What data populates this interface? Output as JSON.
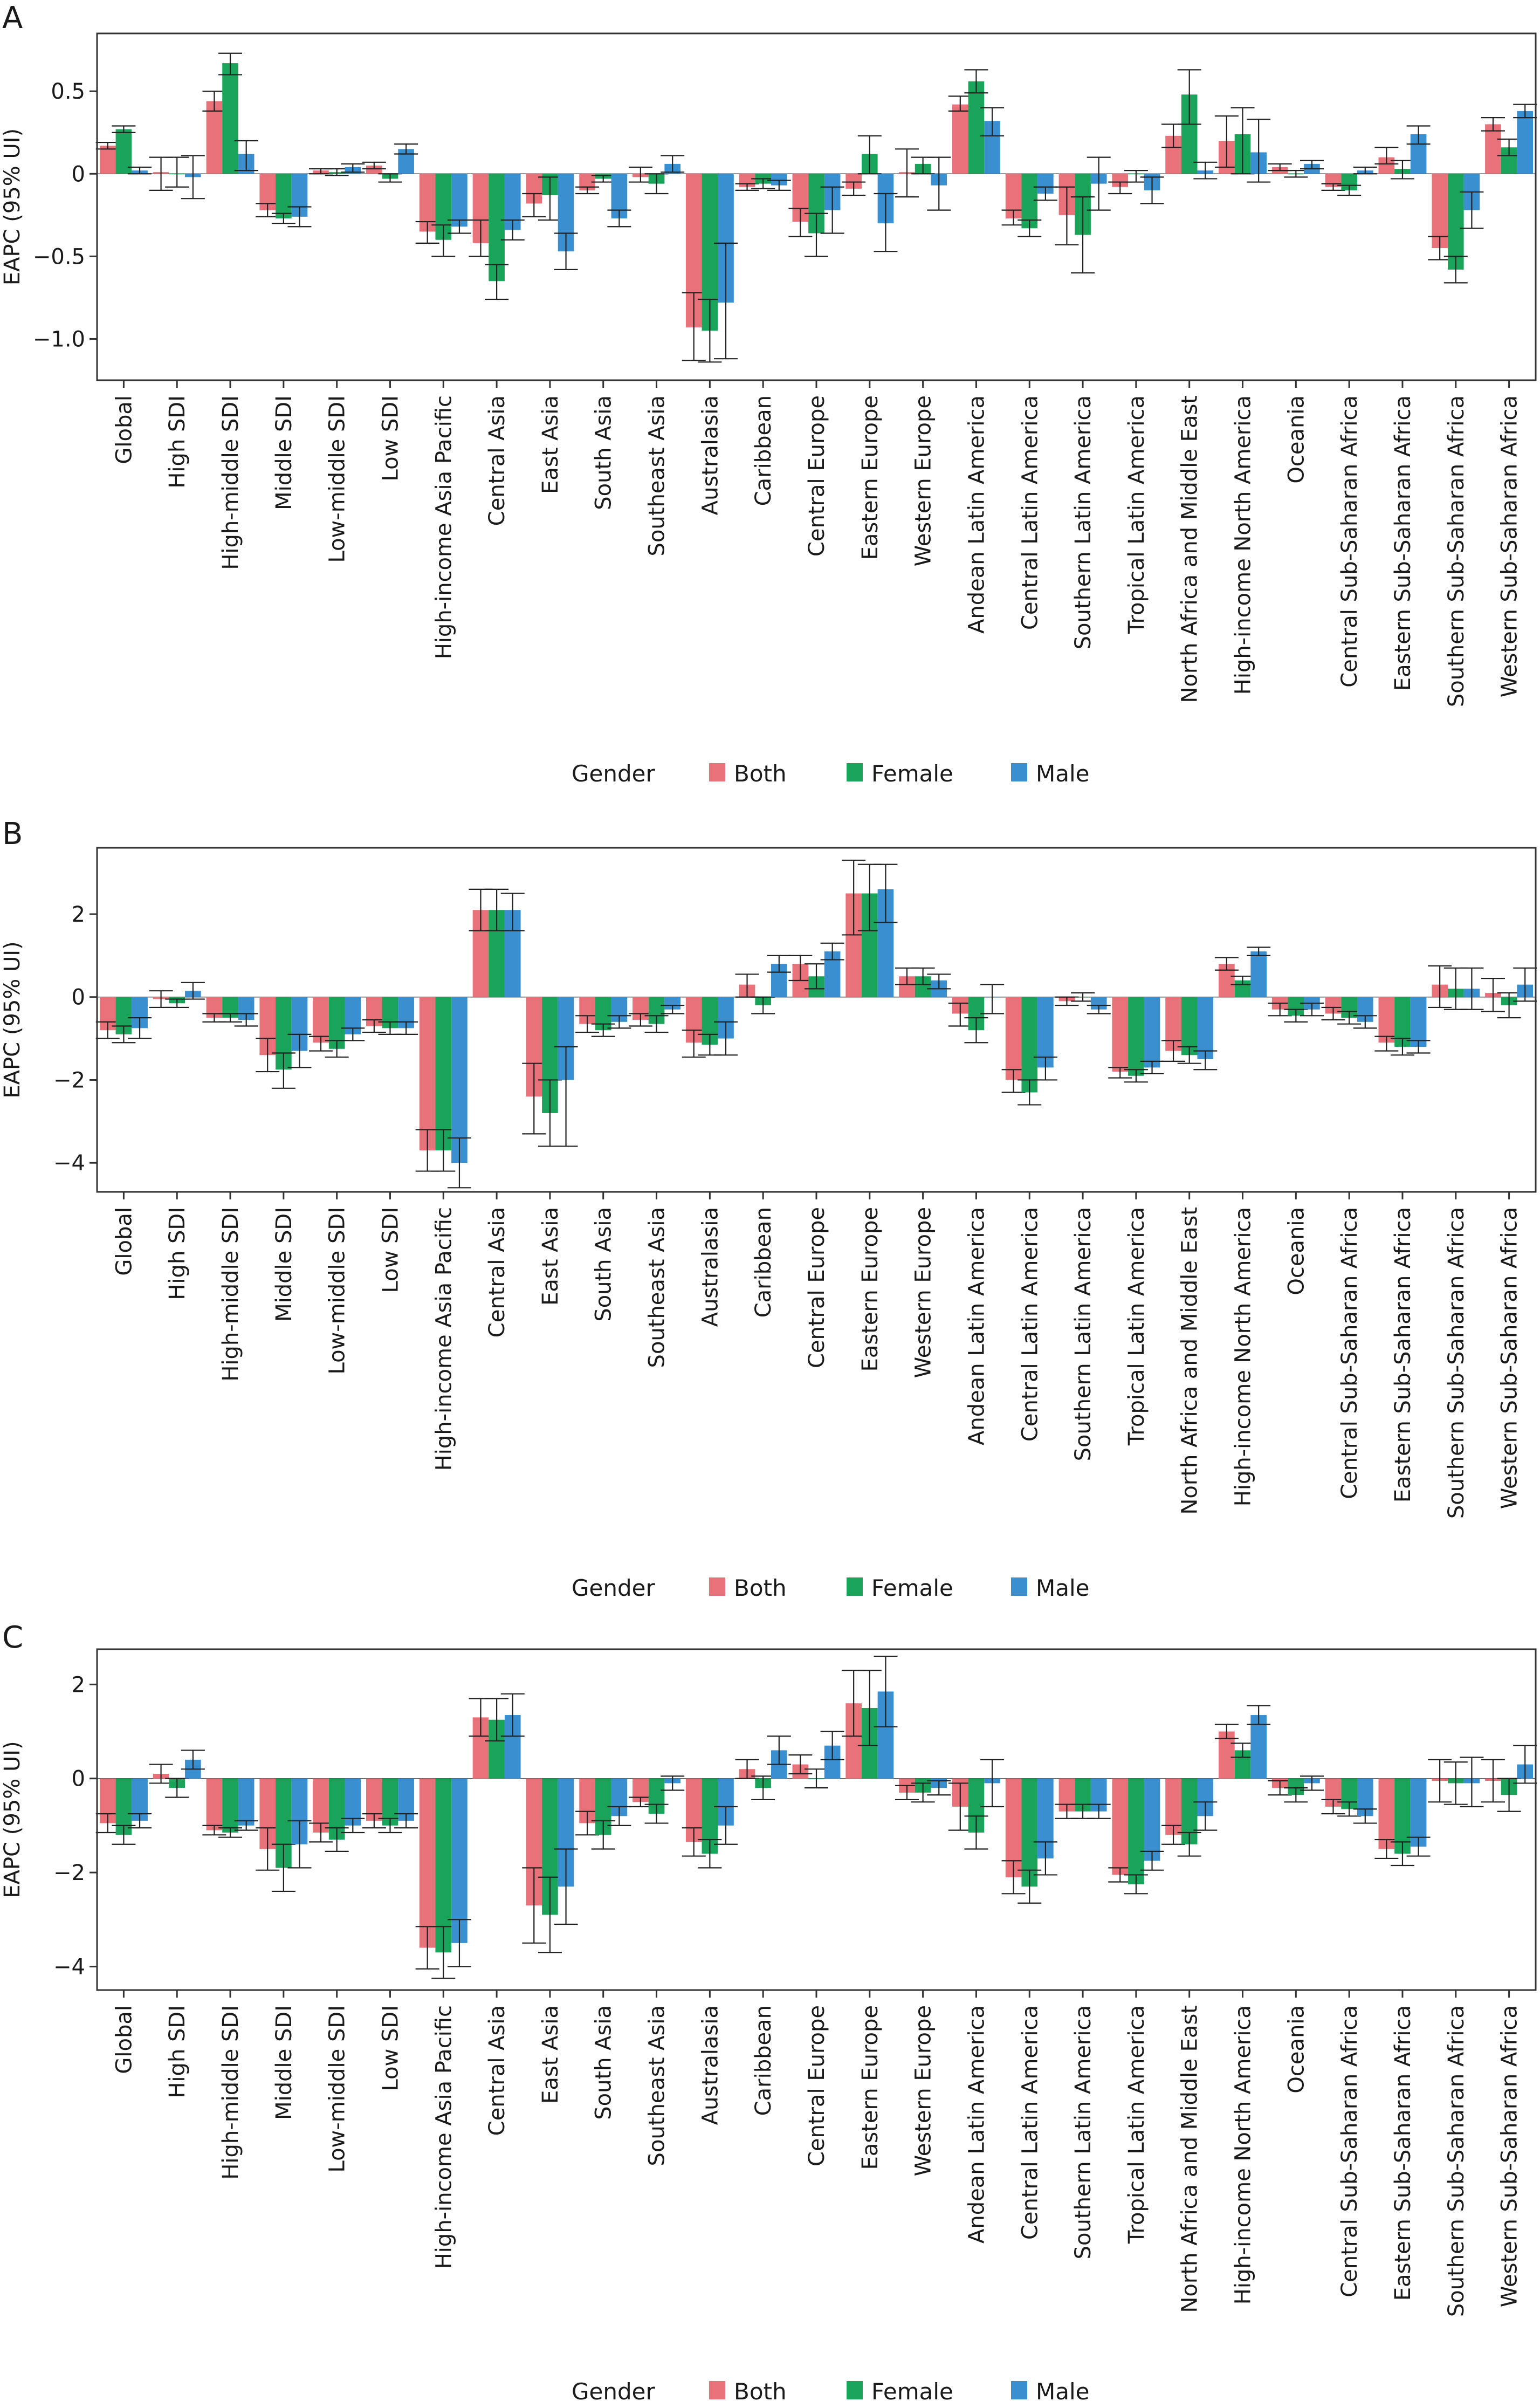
{
  "colors": {
    "Both": "#e8717a",
    "Female": "#1aa45a",
    "Male": "#3a8fd1",
    "axis": "#333333"
  },
  "legend": {
    "title": "Gender"
  },
  "chart_data": [
    {
      "panel_label": "A",
      "type": "bar",
      "ylabel": "EAPC (95% UI)",
      "ylim": [
        -1.25,
        0.85
      ],
      "yticks": [
        0.5,
        0,
        -0.5,
        -1.0
      ],
      "ytick_labels": [
        "0.5",
        "0",
        "−0.5",
        "−1.0"
      ],
      "grid": false,
      "legend_position": "bottom",
      "categories": [
        "Global",
        "High SDI",
        "High-middle SDI",
        "Middle SDI",
        "Low-middle SDI",
        "Low SDI",
        "High-income Asia Pacific",
        "Central Asia",
        "East Asia",
        "South Asia",
        "Southeast Asia",
        "Australasia",
        "Caribbean",
        "Central Europe",
        "Eastern Europe",
        "Western Europe",
        "Andean Latin America",
        "Central Latin America",
        "Southern Latin America",
        "Tropical Latin America",
        "North Africa and Middle East",
        "High-income North America",
        "Oceania",
        "Central Sub-Saharan Africa",
        "Eastern Sub-Saharan Africa",
        "Southern Sub-Saharan Africa",
        "Western Sub-Saharan Africa"
      ],
      "series": [
        {
          "name": "Both",
          "values": [
            0.17,
            0.01,
            0.44,
            -0.22,
            0.02,
            0.05,
            -0.35,
            -0.42,
            -0.18,
            -0.1,
            -0.02,
            -0.93,
            -0.08,
            -0.29,
            -0.09,
            0.01,
            0.42,
            -0.27,
            -0.25,
            -0.08,
            0.23,
            0.2,
            0.04,
            -0.08,
            0.1,
            -0.45,
            0.3
          ],
          "lower": [
            0.15,
            -0.1,
            0.38,
            -0.26,
            0.0,
            0.03,
            -0.42,
            -0.5,
            -0.26,
            -0.12,
            -0.05,
            -1.13,
            -0.1,
            -0.38,
            -0.13,
            -0.14,
            0.38,
            -0.31,
            -0.43,
            -0.12,
            0.16,
            0.04,
            0.02,
            -0.1,
            0.06,
            -0.52,
            0.26
          ],
          "upper": [
            0.19,
            0.1,
            0.5,
            -0.18,
            0.03,
            0.07,
            -0.29,
            -0.28,
            -0.12,
            -0.08,
            0.04,
            -0.72,
            -0.06,
            -0.21,
            -0.05,
            0.15,
            0.47,
            -0.22,
            -0.08,
            -0.05,
            0.3,
            0.35,
            0.06,
            -0.06,
            0.16,
            -0.38,
            0.34
          ]
        },
        {
          "name": "Female",
          "values": [
            0.27,
            0.0,
            0.67,
            -0.27,
            0.01,
            -0.03,
            -0.4,
            -0.65,
            -0.13,
            -0.03,
            -0.06,
            -0.95,
            -0.06,
            -0.36,
            0.12,
            0.06,
            0.56,
            -0.33,
            -0.37,
            0.0,
            0.48,
            0.24,
            0.0,
            -0.1,
            0.03,
            -0.58,
            0.16
          ],
          "lower": [
            0.25,
            -0.08,
            0.6,
            -0.3,
            -0.01,
            -0.05,
            -0.5,
            -0.76,
            -0.28,
            -0.05,
            -0.12,
            -1.14,
            -0.09,
            -0.5,
            0.0,
            0.0,
            0.49,
            -0.38,
            -0.6,
            -0.05,
            0.3,
            0.0,
            -0.02,
            -0.13,
            -0.03,
            -0.66,
            0.11
          ],
          "upper": [
            0.29,
            0.1,
            0.73,
            -0.24,
            0.03,
            0.0,
            -0.31,
            -0.55,
            -0.02,
            -0.01,
            0.0,
            -0.76,
            -0.03,
            -0.24,
            0.23,
            0.1,
            0.63,
            -0.28,
            -0.14,
            0.02,
            0.63,
            0.4,
            0.02,
            -0.07,
            0.08,
            -0.5,
            0.21
          ]
        },
        {
          "name": "Male",
          "values": [
            0.02,
            -0.02,
            0.12,
            -0.26,
            0.04,
            0.15,
            -0.32,
            -0.34,
            -0.47,
            -0.27,
            0.06,
            -0.78,
            -0.07,
            -0.22,
            -0.3,
            -0.07,
            0.32,
            -0.12,
            -0.06,
            -0.1,
            0.02,
            0.13,
            0.06,
            0.02,
            0.24,
            -0.22,
            0.38
          ],
          "lower": [
            0.0,
            -0.15,
            0.02,
            -0.32,
            0.01,
            0.12,
            -0.36,
            -0.4,
            -0.58,
            -0.32,
            0.01,
            -1.12,
            -0.1,
            -0.36,
            -0.47,
            -0.22,
            0.23,
            -0.16,
            -0.22,
            -0.18,
            -0.03,
            -0.05,
            0.03,
            0.0,
            0.18,
            -0.33,
            0.34
          ],
          "upper": [
            0.04,
            0.11,
            0.2,
            -0.2,
            0.06,
            0.18,
            -0.28,
            -0.28,
            -0.36,
            -0.22,
            0.11,
            -0.42,
            -0.04,
            -0.08,
            -0.12,
            0.1,
            0.4,
            -0.08,
            0.1,
            -0.02,
            0.07,
            0.33,
            0.08,
            0.04,
            0.29,
            -0.11,
            0.42
          ]
        }
      ]
    },
    {
      "panel_label": "B",
      "type": "bar",
      "ylabel": "EAPC (95% UI)",
      "ylim": [
        -4.7,
        3.6
      ],
      "yticks": [
        2,
        0,
        -2,
        -4
      ],
      "ytick_labels": [
        "2",
        "0",
        "−2",
        "−4"
      ],
      "grid": false,
      "legend_position": "bottom",
      "categories": [
        "Global",
        "High SDI",
        "High-middle SDI",
        "Middle SDI",
        "Low-middle SDI",
        "Low SDI",
        "High-income Asia Pacific",
        "Central Asia",
        "East Asia",
        "South Asia",
        "Southeast Asia",
        "Australasia",
        "Caribbean",
        "Central Europe",
        "Eastern Europe",
        "Western Europe",
        "Andean Latin America",
        "Central Latin America",
        "Southern Latin America",
        "Tropical Latin America",
        "North Africa and Middle East",
        "High-income North America",
        "Oceania",
        "Central Sub-Saharan Africa",
        "Eastern Sub-Saharan Africa",
        "Southern Sub-Saharan Africa",
        "Western Sub-Saharan Africa"
      ],
      "series": [
        {
          "name": "Both",
          "values": [
            -0.8,
            -0.05,
            -0.5,
            -1.4,
            -1.1,
            -0.7,
            -3.7,
            2.1,
            -2.4,
            -0.65,
            -0.55,
            -1.1,
            0.3,
            0.8,
            2.5,
            0.5,
            -0.4,
            -2.0,
            -0.1,
            -1.8,
            -1.3,
            0.8,
            -0.3,
            -0.4,
            -1.1,
            0.3,
            0.1
          ],
          "lower": [
            -1.0,
            -0.25,
            -0.6,
            -1.8,
            -1.3,
            -0.85,
            -4.2,
            1.6,
            -3.3,
            -0.85,
            -0.7,
            -1.45,
            0.0,
            0.4,
            1.5,
            0.3,
            -0.7,
            -2.3,
            -0.2,
            -1.95,
            -1.55,
            0.65,
            -0.45,
            -0.55,
            -1.3,
            -0.25,
            -0.35
          ],
          "upper": [
            -0.6,
            0.15,
            -0.4,
            -1.0,
            -0.95,
            -0.55,
            -3.2,
            2.6,
            -1.6,
            -0.45,
            -0.4,
            -0.8,
            0.55,
            1.0,
            3.3,
            0.7,
            -0.15,
            -1.75,
            0.0,
            -1.7,
            -1.05,
            0.95,
            -0.15,
            -0.25,
            -0.95,
            0.75,
            0.45
          ]
        },
        {
          "name": "Female",
          "values": [
            -0.9,
            -0.15,
            -0.5,
            -1.75,
            -1.25,
            -0.75,
            -3.7,
            2.1,
            -2.8,
            -0.8,
            -0.65,
            -1.15,
            -0.2,
            0.5,
            2.5,
            0.5,
            -0.8,
            -2.3,
            0.0,
            -1.9,
            -1.4,
            0.4,
            -0.45,
            -0.5,
            -1.2,
            0.2,
            -0.2
          ],
          "lower": [
            -1.1,
            -0.25,
            -0.6,
            -2.2,
            -1.45,
            -0.9,
            -4.2,
            1.6,
            -3.6,
            -0.95,
            -0.85,
            -1.4,
            -0.4,
            0.2,
            1.6,
            0.3,
            -1.1,
            -2.6,
            -0.1,
            -2.05,
            -1.6,
            0.3,
            -0.6,
            -0.65,
            -1.4,
            -0.3,
            -0.5
          ],
          "upper": [
            -0.7,
            -0.05,
            -0.4,
            -1.35,
            -1.05,
            -0.6,
            -3.2,
            2.6,
            -2.0,
            -0.65,
            -0.45,
            -0.9,
            0.0,
            0.8,
            3.2,
            0.7,
            -0.5,
            -2.0,
            0.1,
            -1.75,
            -1.2,
            0.5,
            -0.3,
            -0.35,
            -1.0,
            0.7,
            0.1
          ]
        },
        {
          "name": "Male",
          "values": [
            -0.75,
            0.15,
            -0.55,
            -1.3,
            -0.9,
            -0.75,
            -4.0,
            2.1,
            -2.0,
            -0.6,
            -0.3,
            -1.0,
            0.8,
            1.1,
            2.6,
            0.4,
            0.0,
            -1.7,
            -0.3,
            -1.7,
            -1.5,
            1.1,
            -0.3,
            -0.6,
            -1.2,
            0.2,
            0.3
          ],
          "lower": [
            -1.0,
            -0.05,
            -0.7,
            -1.7,
            -1.05,
            -0.9,
            -4.6,
            1.6,
            -3.6,
            -0.75,
            -0.4,
            -1.4,
            0.6,
            0.9,
            1.8,
            0.2,
            -0.4,
            -2.0,
            -0.4,
            -1.85,
            -1.75,
            1.0,
            -0.45,
            -0.75,
            -1.35,
            -0.3,
            -0.1
          ],
          "upper": [
            -0.5,
            0.35,
            -0.4,
            -0.9,
            -0.75,
            -0.6,
            -3.4,
            2.5,
            -1.2,
            -0.45,
            -0.2,
            -0.6,
            1.0,
            1.3,
            3.2,
            0.55,
            0.3,
            -1.45,
            -0.2,
            -1.55,
            -1.3,
            1.2,
            -0.15,
            -0.45,
            -1.05,
            0.7,
            0.7
          ]
        }
      ]
    },
    {
      "panel_label": "C",
      "type": "bar",
      "ylabel": "EAPC (95% UI)",
      "ylim": [
        -4.5,
        2.75
      ],
      "yticks": [
        2,
        0,
        -2,
        -4
      ],
      "ytick_labels": [
        "2",
        "0",
        "−2",
        "−4"
      ],
      "grid": false,
      "legend_position": "bottom",
      "categories": [
        "Global",
        "High SDI",
        "High-middle SDI",
        "Middle SDI",
        "Low-middle SDI",
        "Low SDI",
        "High-income Asia Pacific",
        "Central Asia",
        "East Asia",
        "South Asia",
        "Southeast Asia",
        "Australasia",
        "Caribbean",
        "Central Europe",
        "Eastern Europe",
        "Western Europe",
        "Andean Latin America",
        "Central Latin America",
        "Southern Latin America",
        "Tropical Latin America",
        "North Africa and Middle East",
        "High-income North America",
        "Oceania",
        "Central Sub-Saharan Africa",
        "Eastern Sub-Saharan Africa",
        "Southern Sub-Saharan Africa",
        "Western Sub-Saharan Africa"
      ],
      "series": [
        {
          "name": "Both",
          "values": [
            -0.95,
            0.1,
            -1.1,
            -1.5,
            -1.15,
            -0.9,
            -3.6,
            1.3,
            -2.7,
            -0.95,
            -0.5,
            -1.35,
            0.2,
            0.3,
            1.6,
            -0.3,
            -0.6,
            -2.1,
            -0.7,
            -2.05,
            -1.2,
            1.0,
            -0.2,
            -0.6,
            -1.5,
            -0.05,
            -0.05
          ],
          "lower": [
            -1.15,
            -0.1,
            -1.2,
            -1.95,
            -1.35,
            -1.05,
            -4.05,
            0.9,
            -3.5,
            -1.2,
            -0.6,
            -1.65,
            0.0,
            0.1,
            0.9,
            -0.45,
            -1.1,
            -2.45,
            -0.85,
            -2.2,
            -1.4,
            0.85,
            -0.35,
            -0.75,
            -1.7,
            -0.5,
            -0.5
          ],
          "upper": [
            -0.75,
            0.3,
            -1.0,
            -1.05,
            -0.95,
            -0.75,
            -3.15,
            1.7,
            -1.9,
            -0.7,
            -0.4,
            -1.05,
            0.4,
            0.5,
            2.3,
            -0.15,
            -0.1,
            -1.75,
            -0.55,
            -1.9,
            -1.0,
            1.15,
            -0.05,
            -0.45,
            -1.3,
            0.4,
            0.4
          ]
        },
        {
          "name": "Female",
          "values": [
            -1.2,
            -0.2,
            -1.15,
            -1.9,
            -1.3,
            -1.0,
            -3.7,
            1.25,
            -2.9,
            -1.2,
            -0.75,
            -1.6,
            -0.2,
            0.0,
            1.5,
            -0.3,
            -1.15,
            -2.3,
            -0.7,
            -2.25,
            -1.4,
            0.6,
            -0.35,
            -0.65,
            -1.6,
            -0.1,
            -0.35
          ],
          "lower": [
            -1.4,
            -0.4,
            -1.25,
            -2.4,
            -1.55,
            -1.15,
            -4.25,
            0.8,
            -3.7,
            -1.5,
            -0.95,
            -1.9,
            -0.45,
            -0.2,
            0.7,
            -0.5,
            -1.5,
            -2.65,
            -0.85,
            -2.45,
            -1.65,
            0.45,
            -0.5,
            -0.8,
            -1.85,
            -0.55,
            -0.7
          ],
          "upper": [
            -1.0,
            0.0,
            -1.05,
            -1.4,
            -1.05,
            -0.85,
            -3.15,
            1.7,
            -2.1,
            -0.9,
            -0.55,
            -1.3,
            0.05,
            0.2,
            2.3,
            -0.1,
            -0.8,
            -1.95,
            -0.55,
            -2.05,
            -1.15,
            0.75,
            -0.2,
            -0.5,
            -1.35,
            0.35,
            0.0
          ]
        },
        {
          "name": "Male",
          "values": [
            -0.9,
            0.4,
            -1.0,
            -1.4,
            -1.0,
            -0.9,
            -3.5,
            1.35,
            -2.3,
            -0.8,
            -0.1,
            -1.0,
            0.6,
            0.7,
            1.85,
            -0.2,
            -0.1,
            -1.7,
            -0.7,
            -1.75,
            -0.8,
            1.35,
            -0.1,
            -0.8,
            -1.45,
            -0.1,
            0.3
          ],
          "lower": [
            -1.05,
            0.2,
            -1.1,
            -1.9,
            -1.15,
            -1.05,
            -4.0,
            0.9,
            -3.1,
            -1.0,
            -0.25,
            -1.4,
            0.3,
            0.4,
            1.1,
            -0.35,
            -0.6,
            -2.05,
            -0.85,
            -1.95,
            -1.1,
            1.15,
            -0.25,
            -0.95,
            -1.65,
            -0.6,
            -0.1
          ],
          "upper": [
            -0.75,
            0.6,
            -0.9,
            -0.9,
            -0.85,
            -0.75,
            -3.0,
            1.8,
            -1.5,
            -0.6,
            0.05,
            -0.6,
            0.9,
            1.0,
            2.6,
            -0.05,
            0.4,
            -1.35,
            -0.55,
            -1.55,
            -0.5,
            1.55,
            0.05,
            -0.65,
            -1.25,
            0.45,
            0.7
          ]
        }
      ]
    }
  ]
}
